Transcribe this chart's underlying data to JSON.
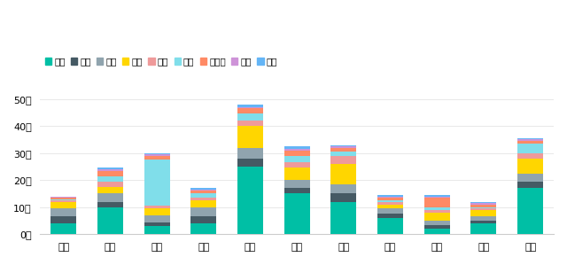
{
  "categories": [
    "安徽",
    "广东",
    "广西",
    "河北",
    "河南",
    "江苏",
    "山东",
    "四川",
    "天津",
    "云南",
    "浙江"
  ],
  "series": [
    {
      "name": "五菱",
      "color": "#00BFA5",
      "values": [
        4.0,
        10.0,
        3.0,
        4.0,
        25.0,
        15.0,
        12.0,
        6.0,
        2.0,
        4.0,
        17.0
      ]
    },
    {
      "name": "长安",
      "color": "#455A64",
      "values": [
        2.5,
        2.0,
        1.5,
        2.5,
        3.0,
        2.0,
        3.0,
        1.5,
        1.5,
        1.0,
        2.5
      ]
    },
    {
      "name": "思皓",
      "color": "#90A4AE",
      "values": [
        3.0,
        3.0,
        2.5,
        3.5,
        4.0,
        3.0,
        3.5,
        2.0,
        1.5,
        1.5,
        3.0
      ]
    },
    {
      "name": "奇瑞",
      "color": "#FFD600",
      "values": [
        2.5,
        2.5,
        2.5,
        2.5,
        8.0,
        4.5,
        7.5,
        1.5,
        3.0,
        2.5,
        5.5
      ]
    },
    {
      "name": "欧拉",
      "color": "#EF9A9A",
      "values": [
        0.5,
        2.0,
        1.0,
        1.0,
        2.0,
        2.0,
        3.0,
        1.0,
        1.0,
        0.5,
        2.0
      ]
    },
    {
      "name": "零跑",
      "color": "#80DEEA",
      "values": [
        0.5,
        2.0,
        17.0,
        1.5,
        2.5,
        2.5,
        1.5,
        0.5,
        1.0,
        0.5,
        3.5
      ]
    },
    {
      "name": "科莱威",
      "color": "#FF8A65",
      "values": [
        0.5,
        2.0,
        1.5,
        1.0,
        2.0,
        2.0,
        1.5,
        1.0,
        3.5,
        1.0,
        1.0
      ]
    },
    {
      "name": "北京",
      "color": "#CE93D8",
      "values": [
        0.3,
        0.5,
        0.5,
        0.5,
        0.5,
        0.5,
        0.5,
        0.5,
        0.5,
        0.5,
        0.5
      ]
    },
    {
      "name": "宝骏",
      "color": "#64B5F6",
      "values": [
        0.2,
        0.5,
        0.5,
        0.5,
        1.0,
        1.0,
        0.5,
        0.5,
        0.5,
        0.5,
        0.5
      ]
    }
  ],
  "yticks": [
    0,
    10,
    20,
    30,
    40,
    50
  ],
  "ytick_labels": [
    "0千",
    "10千",
    "20千",
    "30千",
    "40千",
    "50千"
  ],
  "background_color": "#FFFFFF",
  "grid_color": "#E8E8E8",
  "bar_width": 0.55,
  "ylim": 55
}
